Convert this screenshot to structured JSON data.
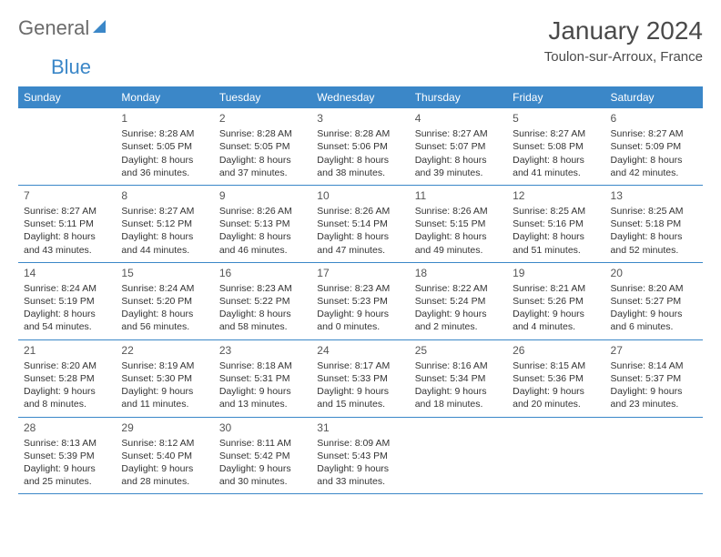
{
  "logo": {
    "part1": "General",
    "part2": "Blue"
  },
  "title": "January 2024",
  "location": "Toulon-sur-Arroux, France",
  "header_bg": "#3b87c8",
  "weekdays": [
    "Sunday",
    "Monday",
    "Tuesday",
    "Wednesday",
    "Thursday",
    "Friday",
    "Saturday"
  ],
  "weeks": [
    [
      null,
      {
        "day": "1",
        "sunrise": "Sunrise: 8:28 AM",
        "sunset": "Sunset: 5:05 PM",
        "dl1": "Daylight: 8 hours",
        "dl2": "and 36 minutes."
      },
      {
        "day": "2",
        "sunrise": "Sunrise: 8:28 AM",
        "sunset": "Sunset: 5:05 PM",
        "dl1": "Daylight: 8 hours",
        "dl2": "and 37 minutes."
      },
      {
        "day": "3",
        "sunrise": "Sunrise: 8:28 AM",
        "sunset": "Sunset: 5:06 PM",
        "dl1": "Daylight: 8 hours",
        "dl2": "and 38 minutes."
      },
      {
        "day": "4",
        "sunrise": "Sunrise: 8:27 AM",
        "sunset": "Sunset: 5:07 PM",
        "dl1": "Daylight: 8 hours",
        "dl2": "and 39 minutes."
      },
      {
        "day": "5",
        "sunrise": "Sunrise: 8:27 AM",
        "sunset": "Sunset: 5:08 PM",
        "dl1": "Daylight: 8 hours",
        "dl2": "and 41 minutes."
      },
      {
        "day": "6",
        "sunrise": "Sunrise: 8:27 AM",
        "sunset": "Sunset: 5:09 PM",
        "dl1": "Daylight: 8 hours",
        "dl2": "and 42 minutes."
      }
    ],
    [
      {
        "day": "7",
        "sunrise": "Sunrise: 8:27 AM",
        "sunset": "Sunset: 5:11 PM",
        "dl1": "Daylight: 8 hours",
        "dl2": "and 43 minutes."
      },
      {
        "day": "8",
        "sunrise": "Sunrise: 8:27 AM",
        "sunset": "Sunset: 5:12 PM",
        "dl1": "Daylight: 8 hours",
        "dl2": "and 44 minutes."
      },
      {
        "day": "9",
        "sunrise": "Sunrise: 8:26 AM",
        "sunset": "Sunset: 5:13 PM",
        "dl1": "Daylight: 8 hours",
        "dl2": "and 46 minutes."
      },
      {
        "day": "10",
        "sunrise": "Sunrise: 8:26 AM",
        "sunset": "Sunset: 5:14 PM",
        "dl1": "Daylight: 8 hours",
        "dl2": "and 47 minutes."
      },
      {
        "day": "11",
        "sunrise": "Sunrise: 8:26 AM",
        "sunset": "Sunset: 5:15 PM",
        "dl1": "Daylight: 8 hours",
        "dl2": "and 49 minutes."
      },
      {
        "day": "12",
        "sunrise": "Sunrise: 8:25 AM",
        "sunset": "Sunset: 5:16 PM",
        "dl1": "Daylight: 8 hours",
        "dl2": "and 51 minutes."
      },
      {
        "day": "13",
        "sunrise": "Sunrise: 8:25 AM",
        "sunset": "Sunset: 5:18 PM",
        "dl1": "Daylight: 8 hours",
        "dl2": "and 52 minutes."
      }
    ],
    [
      {
        "day": "14",
        "sunrise": "Sunrise: 8:24 AM",
        "sunset": "Sunset: 5:19 PM",
        "dl1": "Daylight: 8 hours",
        "dl2": "and 54 minutes."
      },
      {
        "day": "15",
        "sunrise": "Sunrise: 8:24 AM",
        "sunset": "Sunset: 5:20 PM",
        "dl1": "Daylight: 8 hours",
        "dl2": "and 56 minutes."
      },
      {
        "day": "16",
        "sunrise": "Sunrise: 8:23 AM",
        "sunset": "Sunset: 5:22 PM",
        "dl1": "Daylight: 8 hours",
        "dl2": "and 58 minutes."
      },
      {
        "day": "17",
        "sunrise": "Sunrise: 8:23 AM",
        "sunset": "Sunset: 5:23 PM",
        "dl1": "Daylight: 9 hours",
        "dl2": "and 0 minutes."
      },
      {
        "day": "18",
        "sunrise": "Sunrise: 8:22 AM",
        "sunset": "Sunset: 5:24 PM",
        "dl1": "Daylight: 9 hours",
        "dl2": "and 2 minutes."
      },
      {
        "day": "19",
        "sunrise": "Sunrise: 8:21 AM",
        "sunset": "Sunset: 5:26 PM",
        "dl1": "Daylight: 9 hours",
        "dl2": "and 4 minutes."
      },
      {
        "day": "20",
        "sunrise": "Sunrise: 8:20 AM",
        "sunset": "Sunset: 5:27 PM",
        "dl1": "Daylight: 9 hours",
        "dl2": "and 6 minutes."
      }
    ],
    [
      {
        "day": "21",
        "sunrise": "Sunrise: 8:20 AM",
        "sunset": "Sunset: 5:28 PM",
        "dl1": "Daylight: 9 hours",
        "dl2": "and 8 minutes."
      },
      {
        "day": "22",
        "sunrise": "Sunrise: 8:19 AM",
        "sunset": "Sunset: 5:30 PM",
        "dl1": "Daylight: 9 hours",
        "dl2": "and 11 minutes."
      },
      {
        "day": "23",
        "sunrise": "Sunrise: 8:18 AM",
        "sunset": "Sunset: 5:31 PM",
        "dl1": "Daylight: 9 hours",
        "dl2": "and 13 minutes."
      },
      {
        "day": "24",
        "sunrise": "Sunrise: 8:17 AM",
        "sunset": "Sunset: 5:33 PM",
        "dl1": "Daylight: 9 hours",
        "dl2": "and 15 minutes."
      },
      {
        "day": "25",
        "sunrise": "Sunrise: 8:16 AM",
        "sunset": "Sunset: 5:34 PM",
        "dl1": "Daylight: 9 hours",
        "dl2": "and 18 minutes."
      },
      {
        "day": "26",
        "sunrise": "Sunrise: 8:15 AM",
        "sunset": "Sunset: 5:36 PM",
        "dl1": "Daylight: 9 hours",
        "dl2": "and 20 minutes."
      },
      {
        "day": "27",
        "sunrise": "Sunrise: 8:14 AM",
        "sunset": "Sunset: 5:37 PM",
        "dl1": "Daylight: 9 hours",
        "dl2": "and 23 minutes."
      }
    ],
    [
      {
        "day": "28",
        "sunrise": "Sunrise: 8:13 AM",
        "sunset": "Sunset: 5:39 PM",
        "dl1": "Daylight: 9 hours",
        "dl2": "and 25 minutes."
      },
      {
        "day": "29",
        "sunrise": "Sunrise: 8:12 AM",
        "sunset": "Sunset: 5:40 PM",
        "dl1": "Daylight: 9 hours",
        "dl2": "and 28 minutes."
      },
      {
        "day": "30",
        "sunrise": "Sunrise: 8:11 AM",
        "sunset": "Sunset: 5:42 PM",
        "dl1": "Daylight: 9 hours",
        "dl2": "and 30 minutes."
      },
      {
        "day": "31",
        "sunrise": "Sunrise: 8:09 AM",
        "sunset": "Sunset: 5:43 PM",
        "dl1": "Daylight: 9 hours",
        "dl2": "and 33 minutes."
      },
      null,
      null,
      null
    ]
  ]
}
